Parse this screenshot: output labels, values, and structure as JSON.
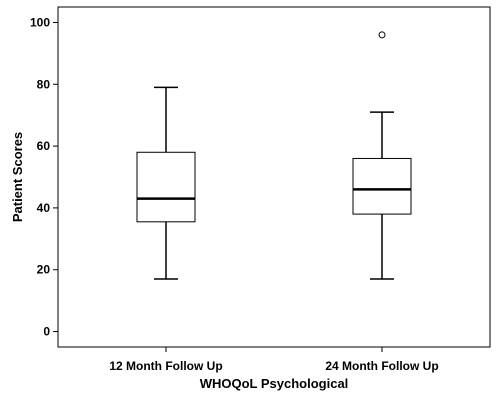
{
  "chart_data": {
    "type": "boxplot",
    "xlabel": "WHOQoL Psychological",
    "ylabel": "Patient Scores",
    "ylim": [
      -5,
      105
    ],
    "yticks": [
      0,
      20,
      40,
      60,
      80,
      100
    ],
    "grid": false,
    "categories": [
      "12 Month Follow Up",
      "24 Month Follow Up"
    ],
    "boxes": [
      {
        "category": "12 Month Follow Up",
        "min": 17,
        "q1": 35.5,
        "median": 43,
        "q3": 58,
        "max": 79,
        "outliers": []
      },
      {
        "category": "24 Month Follow Up",
        "min": 17,
        "q1": 38,
        "median": 46,
        "q3": 56,
        "max": 71,
        "outliers": [
          96
        ]
      }
    ]
  }
}
